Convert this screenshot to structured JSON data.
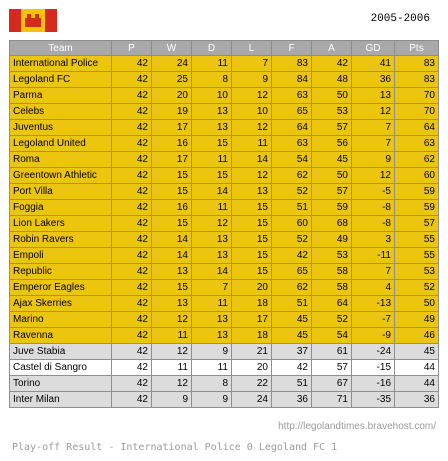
{
  "season": "2005-2006",
  "colors": {
    "highlight": "#ecc511",
    "header": "#a9a9a9",
    "flag_red": "#d52b1e",
    "flag_yellow": "#f4c400"
  },
  "icons": {
    "flag": "lego-brick-flag-icon"
  },
  "columns": [
    "Team",
    "P",
    "W",
    "D",
    "L",
    "F",
    "A",
    "GD",
    "Pts"
  ],
  "rows": [
    {
      "team": "International Police",
      "p": "42",
      "w": "24",
      "d": "11",
      "l": "7",
      "f": "83",
      "a": "42",
      "gd": "41",
      "pts": "83",
      "style": "y"
    },
    {
      "team": "Legoland FC",
      "p": "42",
      "w": "25",
      "d": "8",
      "l": "9",
      "f": "84",
      "a": "48",
      "gd": "36",
      "pts": "83",
      "style": "y"
    },
    {
      "team": "Parma",
      "p": "42",
      "w": "20",
      "d": "10",
      "l": "12",
      "f": "63",
      "a": "50",
      "gd": "13",
      "pts": "70",
      "style": "y"
    },
    {
      "team": "Celebs",
      "p": "42",
      "w": "19",
      "d": "13",
      "l": "10",
      "f": "65",
      "a": "53",
      "gd": "12",
      "pts": "70",
      "style": "y"
    },
    {
      "team": "Juventus",
      "p": "42",
      "w": "17",
      "d": "13",
      "l": "12",
      "f": "64",
      "a": "57",
      "gd": "7",
      "pts": "64",
      "style": "y"
    },
    {
      "team": "Legoland United",
      "p": "42",
      "w": "16",
      "d": "15",
      "l": "11",
      "f": "63",
      "a": "56",
      "gd": "7",
      "pts": "63",
      "style": "y"
    },
    {
      "team": "Roma",
      "p": "42",
      "w": "17",
      "d": "11",
      "l": "14",
      "f": "54",
      "a": "45",
      "gd": "9",
      "pts": "62",
      "style": "y"
    },
    {
      "team": "Greentown Athletic",
      "p": "42",
      "w": "15",
      "d": "15",
      "l": "12",
      "f": "62",
      "a": "50",
      "gd": "12",
      "pts": "60",
      "style": "y"
    },
    {
      "team": "Port Villa",
      "p": "42",
      "w": "15",
      "d": "14",
      "l": "13",
      "f": "52",
      "a": "57",
      "gd": "-5",
      "pts": "59",
      "style": "y"
    },
    {
      "team": "Foggia",
      "p": "42",
      "w": "16",
      "d": "11",
      "l": "15",
      "f": "51",
      "a": "59",
      "gd": "-8",
      "pts": "59",
      "style": "y"
    },
    {
      "team": "Lion Lakers",
      "p": "42",
      "w": "15",
      "d": "12",
      "l": "15",
      "f": "60",
      "a": "68",
      "gd": "-8",
      "pts": "57",
      "style": "y"
    },
    {
      "team": "Robin Ravers",
      "p": "42",
      "w": "14",
      "d": "13",
      "l": "15",
      "f": "52",
      "a": "49",
      "gd": "3",
      "pts": "55",
      "style": "y"
    },
    {
      "team": "Empoli",
      "p": "42",
      "w": "14",
      "d": "13",
      "l": "15",
      "f": "42",
      "a": "53",
      "gd": "-11",
      "pts": "55",
      "style": "y"
    },
    {
      "team": "Republic",
      "p": "42",
      "w": "13",
      "d": "14",
      "l": "15",
      "f": "65",
      "a": "58",
      "gd": "7",
      "pts": "53",
      "style": "y"
    },
    {
      "team": "Emperor Eagles",
      "p": "42",
      "w": "15",
      "d": "7",
      "l": "20",
      "f": "62",
      "a": "58",
      "gd": "4",
      "pts": "52",
      "style": "y"
    },
    {
      "team": "Ajax Skerries",
      "p": "42",
      "w": "13",
      "d": "11",
      "l": "18",
      "f": "51",
      "a": "64",
      "gd": "-13",
      "pts": "50",
      "style": "y"
    },
    {
      "team": "Marino",
      "p": "42",
      "w": "12",
      "d": "13",
      "l": "17",
      "f": "45",
      "a": "52",
      "gd": "-7",
      "pts": "49",
      "style": "y"
    },
    {
      "team": "Ravenna",
      "p": "42",
      "w": "11",
      "d": "13",
      "l": "18",
      "f": "45",
      "a": "54",
      "gd": "-9",
      "pts": "46",
      "style": "y"
    },
    {
      "team": "Juve Stabia",
      "p": "42",
      "w": "12",
      "d": "9",
      "l": "21",
      "f": "37",
      "a": "61",
      "gd": "-24",
      "pts": "45",
      "style": "g"
    },
    {
      "team": "Castel di Sangro",
      "p": "42",
      "w": "11",
      "d": "11",
      "l": "20",
      "f": "42",
      "a": "57",
      "gd": "-15",
      "pts": "44",
      "style": "w"
    },
    {
      "team": "Torino",
      "p": "42",
      "w": "12",
      "d": "8",
      "l": "22",
      "f": "51",
      "a": "67",
      "gd": "-16",
      "pts": "44",
      "style": "g"
    },
    {
      "team": "Inter Milan",
      "p": "42",
      "w": "9",
      "d": "9",
      "l": "24",
      "f": "36",
      "a": "71",
      "gd": "-35",
      "pts": "36",
      "style": "g"
    }
  ],
  "footer_url": "http://legolandtimes.bravehost.com/",
  "playoff_result": "Play-off Result - International Police 0 Legoland FC 1"
}
